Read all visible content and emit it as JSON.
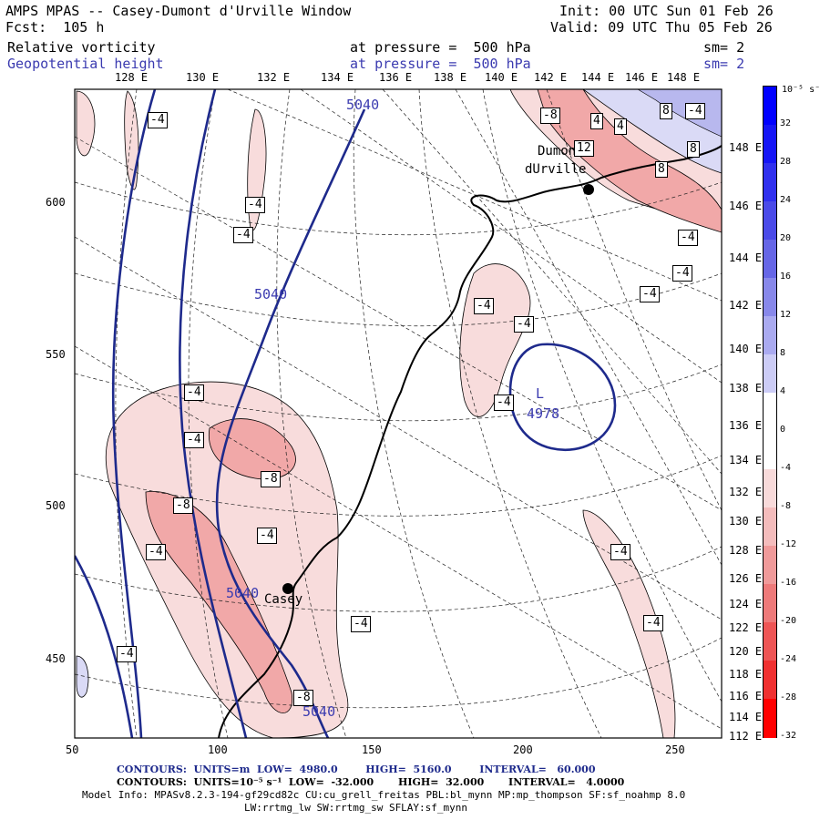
{
  "header": {
    "model_title": "AMPS MPAS -- Casey-Dumont d'Urville Window",
    "init_label": "Init: 00 UTC Sun 01 Feb 26",
    "fcst_label": "Fcst:  105 h",
    "valid_label": "Valid: 09 UTC Thu 05 Feb 26",
    "field1_name": "Relative vorticity",
    "field1_level": "at pressure =  500 hPa",
    "field1_sm": "sm= 2",
    "field2_name": "Geopotential height",
    "field2_level": "at pressure =  500 hPa",
    "field2_sm": "sm= 2"
  },
  "top_lon_labels": [
    "128 E",
    "130 E",
    "132 E",
    "134 E",
    "136 E",
    "138 E",
    "140 E",
    "142 E",
    "144 E",
    "146 E",
    "148 E"
  ],
  "right_lon_labels": [
    "148 E",
    "146 E",
    "144 E",
    "142 E",
    "140 E",
    "138 E",
    "136 E",
    "134 E",
    "132 E",
    "130 E",
    "128 E",
    "126 E",
    "124 E",
    "122 E",
    "120 E",
    "118 E",
    "116 E",
    "114 E",
    "112 E"
  ],
  "x_axis_ticks": [
    "50",
    "100",
    "150",
    "200",
    "250"
  ],
  "y_axis_ticks": [
    "600",
    "550",
    "500",
    "450"
  ],
  "colorbar": {
    "unit": "10⁻⁵ s⁻¹",
    "labels": [
      "32",
      "28",
      "24",
      "20",
      "16",
      "12",
      "8",
      "4",
      "0",
      "-4",
      "-8",
      "-12",
      "-16",
      "-20",
      "-24",
      "-28",
      "-32"
    ],
    "colors": [
      "#0000ff",
      "#1515f5",
      "#3030ee",
      "#4a4ae8",
      "#6666e6",
      "#8888ea",
      "#aaaaf0",
      "#ccccf6",
      "#ffffff",
      "#ffffff",
      "#f8dada",
      "#f4bcbc",
      "#f09a9a",
      "#ee7a7a",
      "#ee5555",
      "#f03030",
      "#ff0000"
    ]
  },
  "places": [
    {
      "name": "Dumont\ndUrville",
      "label1": "Dumont",
      "label2": "dUrville"
    },
    {
      "name": "Casey",
      "label1": "Casey"
    }
  ],
  "contour_labels": {
    "height": [
      "5040",
      "5040",
      "5040",
      "5040"
    ],
    "low_marker": "L",
    "low_value": "4978",
    "vorticity": [
      "-4",
      "-4",
      "-4",
      "-4",
      "-4",
      "-4",
      "-4",
      "-8",
      "-8",
      "-4",
      "-4",
      "-4",
      "-4",
      "-4",
      "-4",
      "-8",
      "4",
      "4",
      "8",
      "8",
      "8",
      "12",
      "-4",
      "-4",
      "-4",
      "-4",
      "-8",
      "-4"
    ]
  },
  "footer": {
    "height_contours": "CONTOURS:  UNITS=m  LOW=  4980.0        HIGH=  5160.0        INTERVAL=   60.000",
    "vort_contours": "CONTOURS:  UNITS=10⁻⁵ s⁻¹  LOW=  -32.000       HIGH=  32.000       INTERVAL=   4.0000",
    "model_info": "Model Info: MPASv8.2.3-194-gf29cd82c CU:cu_grell_freitas PBL:bl_mynn MP:mp_thompson SF:sf_noahmp 8.0",
    "model_info2": "LW:rrtmg_lw SW:rrtmg_sw SFLAY:sf_mynn"
  }
}
